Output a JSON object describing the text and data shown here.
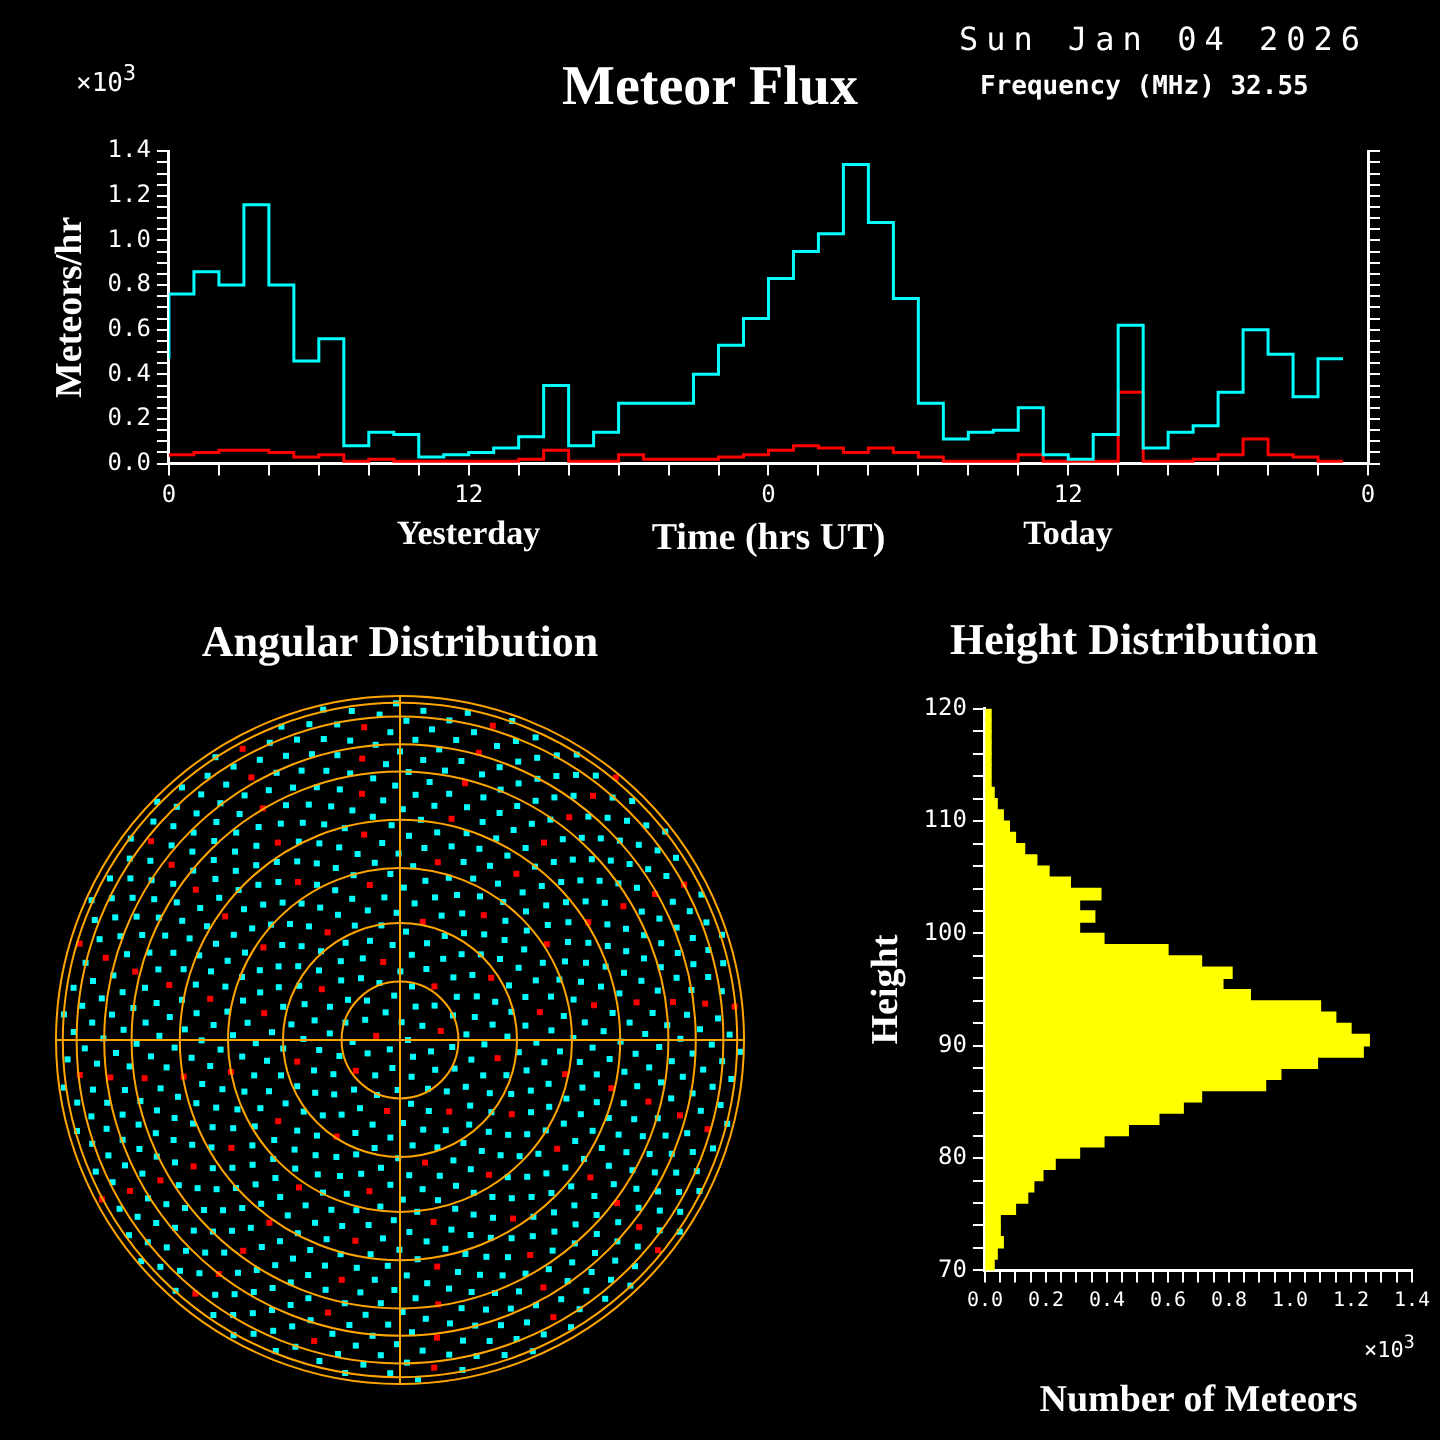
{
  "chart_data": [
    {
      "type": "step",
      "title": "Meteor Flux",
      "subtitle": "Sun Jan 04 2026",
      "xlabel": "Time (hrs UT)",
      "ylabel": "Meteors/hr",
      "annotations": [
        "×10$^{3}$",
        "Frequency (MHz)  32.55",
        "Yesterday",
        "Today"
      ],
      "x": [
        "2026-01-03T00:00",
        "2026-01-03T01:00",
        "2026-01-03T02:00",
        "2026-01-03T03:00",
        "2026-01-03T04:00",
        "2026-01-03T05:00",
        "2026-01-03T06:00",
        "2026-01-03T07:00",
        "2026-01-03T08:00",
        "2026-01-03T09:00",
        "2026-01-03T10:00",
        "2026-01-03T11:00",
        "2026-01-03T12:00",
        "2026-01-03T13:00",
        "2026-01-03T14:00",
        "2026-01-03T15:00",
        "2026-01-03T16:00",
        "2026-01-03T17:00",
        "2026-01-03T18:00",
        "2026-01-03T19:00",
        "2026-01-03T20:00",
        "2026-01-03T21:00",
        "2026-01-03T22:00",
        "2026-01-03T23:00",
        "2026-01-04T00:00",
        "2026-01-04T01:00",
        "2026-01-04T02:00",
        "2026-01-04T03:00",
        "2026-01-04T04:00",
        "2026-01-04T05:00",
        "2026-01-04T06:00",
        "2026-01-04T07:00",
        "2026-01-04T08:00",
        "2026-01-04T09:00",
        "2026-01-04T10:00",
        "2026-01-04T11:00",
        "2026-01-04T12:00",
        "2026-01-04T13:00",
        "2026-01-04T14:00",
        "2026-01-04T15:00",
        "2026-01-04T16:00",
        "2026-01-04T17:00",
        "2026-01-04T18:00",
        "2026-01-04T19:00",
        "2026-01-04T20:00",
        "2026-01-04T21:00",
        "2026-01-04T22:00",
        "2026-01-04T23:00"
      ],
      "series": [
        {
          "color": "#00ffff",
          "values": [
            0.47,
            0.76,
            0.86,
            0.8,
            1.16,
            0.8,
            0.46,
            0.56,
            0.08,
            0.14,
            0.13,
            0.03,
            0.04,
            0.05,
            0.07,
            0.12,
            0.35,
            0.08,
            0.14,
            0.27,
            0.27,
            0.27,
            0.4,
            0.53,
            0.65,
            0.83,
            0.95,
            1.03,
            1.34,
            1.08,
            0.74,
            0.27,
            0.11,
            0.14,
            0.15,
            0.25,
            0.04,
            0.02,
            0.13,
            0.62,
            0.07,
            0.14,
            0.17,
            0.32,
            0.6,
            0.49,
            0.3,
            0.47
          ]
        },
        {
          "color": "#ff0000",
          "values": [
            0.03,
            0.04,
            0.05,
            0.06,
            0.06,
            0.05,
            0.03,
            0.04,
            0.01,
            0.02,
            0.01,
            0.01,
            0.01,
            0.01,
            0.01,
            0.02,
            0.06,
            0.01,
            0.01,
            0.04,
            0.02,
            0.02,
            0.02,
            0.03,
            0.04,
            0.06,
            0.08,
            0.07,
            0.05,
            0.07,
            0.05,
            0.03,
            0.01,
            0.01,
            0.01,
            0.04,
            0.01,
            0.01,
            0.01,
            0.32,
            0.01,
            0.01,
            0.02,
            0.04,
            0.11,
            0.04,
            0.03,
            0.01
          ]
        }
      ],
      "xlim": [
        "2026-01-03T00:00",
        "2026-01-05T00:00"
      ],
      "xticks": [
        {
          "value": "2026-01-03T00:00",
          "label": "0"
        },
        {
          "value": "2026-01-03T02:00",
          "label": null
        },
        {
          "value": "2026-01-03T04:00",
          "label": null
        },
        {
          "value": "2026-01-03T06:00",
          "label": null
        },
        {
          "value": "2026-01-03T08:00",
          "label": null
        },
        {
          "value": "2026-01-03T10:00",
          "label": null
        },
        {
          "value": "2026-01-03T12:00",
          "label": "12"
        },
        {
          "value": "2026-01-03T14:00",
          "label": null
        },
        {
          "value": "2026-01-03T16:00",
          "label": null
        },
        {
          "value": "2026-01-03T18:00",
          "label": null
        },
        {
          "value": "2026-01-03T20:00",
          "label": null
        },
        {
          "value": "2026-01-03T22:00",
          "label": null
        },
        {
          "value": "2026-01-04T00:00",
          "label": "0"
        },
        {
          "value": "2026-01-04T02:00",
          "label": null
        },
        {
          "value": "2026-01-04T04:00",
          "label": null
        },
        {
          "value": "2026-01-04T06:00",
          "label": null
        },
        {
          "value": "2026-01-04T08:00",
          "label": null
        },
        {
          "value": "2026-01-04T10:00",
          "label": null
        },
        {
          "value": "2026-01-04T12:00",
          "label": "12"
        },
        {
          "value": "2026-01-04T14:00",
          "label": null
        },
        {
          "value": "2026-01-04T16:00",
          "label": null
        },
        {
          "value": "2026-01-04T18:00",
          "label": null
        },
        {
          "value": "2026-01-04T20:00",
          "label": null
        },
        {
          "value": "2026-01-04T22:00",
          "label": null
        },
        {
          "value": "2026-01-05T00:00",
          "label": "0"
        }
      ],
      "ylim": [
        0,
        1.4
      ],
      "yticks": [
        {
          "value": 0,
          "label": "0.0"
        },
        {
          "value": 0.05,
          "label": null
        },
        {
          "value": 0.1,
          "label": null
        },
        {
          "value": 0.15,
          "label": null
        },
        {
          "value": 0.2,
          "label": "0.2"
        },
        {
          "value": 0.25,
          "label": null
        },
        {
          "value": 0.3,
          "label": null
        },
        {
          "value": 0.35,
          "label": null
        },
        {
          "value": 0.4,
          "label": "0.4"
        },
        {
          "value": 0.45,
          "label": null
        },
        {
          "value": 0.5,
          "label": null
        },
        {
          "value": 0.55,
          "label": null
        },
        {
          "value": 0.6,
          "label": "0.6"
        },
        {
          "value": 0.65,
          "label": null
        },
        {
          "value": 0.7,
          "label": null
        },
        {
          "value": 0.75,
          "label": null
        },
        {
          "value": 0.8,
          "label": "0.8"
        },
        {
          "value": 0.85,
          "label": null
        },
        {
          "value": 0.9,
          "label": null
        },
        {
          "value": 0.95,
          "label": null
        },
        {
          "value": 1.0,
          "label": "1.0"
        },
        {
          "value": 1.05,
          "label": null
        },
        {
          "value": 1.1,
          "label": null
        },
        {
          "value": 1.15,
          "label": null
        },
        {
          "value": 1.2,
          "label": "1.2"
        },
        {
          "value": 1.25,
          "label": null
        },
        {
          "value": 1.3,
          "label": null
        },
        {
          "value": 1.35,
          "label": null
        },
        {
          "value": 1.4,
          "label": "1.4"
        }
      ]
    },
    {
      "type": "other",
      "title": "Angular Distribution"
    },
    {
      "type": "histogram",
      "orientation": "horizontal",
      "title": "Height Distribution",
      "xlabel": "Number of Meteors",
      "ylabel": "Height",
      "annotations": [
        "×10$^{3}$"
      ],
      "color": "#ffff00",
      "bins": [
        70,
        71,
        72,
        73,
        74,
        75,
        76,
        77,
        78,
        79,
        80,
        81,
        82,
        83,
        84,
        85,
        86,
        87,
        88,
        89,
        90,
        91,
        92,
        93,
        94,
        95,
        96,
        97,
        98,
        99,
        100,
        101,
        102,
        103,
        104,
        105,
        106,
        107,
        108,
        109,
        110,
        111,
        112,
        113,
        114,
        115,
        116,
        117,
        118,
        119,
        120
      ],
      "values": [
        0.03,
        0.04,
        0.06,
        0.05,
        0.05,
        0.1,
        0.14,
        0.16,
        0.19,
        0.23,
        0.31,
        0.39,
        0.47,
        0.57,
        0.65,
        0.71,
        0.92,
        0.97,
        1.09,
        1.24,
        1.26,
        1.2,
        1.15,
        1.1,
        0.87,
        0.78,
        0.81,
        0.71,
        0.6,
        0.39,
        0.31,
        0.36,
        0.31,
        0.38,
        0.28,
        0.21,
        0.17,
        0.13,
        0.1,
        0.08,
        0.06,
        0.04,
        0.03,
        0.02,
        0.02,
        0.02,
        0.02,
        0.02,
        0.02,
        0.02
      ],
      "xlim": [
        0,
        1.4
      ],
      "xticks": [
        {
          "value": 0,
          "label": "0.0"
        },
        {
          "value": 0.05,
          "label": null
        },
        {
          "value": 0.1,
          "label": null
        },
        {
          "value": 0.15,
          "label": null
        },
        {
          "value": 0.2,
          "label": "0.2"
        },
        {
          "value": 0.25,
          "label": null
        },
        {
          "value": 0.3,
          "label": null
        },
        {
          "value": 0.35,
          "label": null
        },
        {
          "value": 0.4,
          "label": "0.4"
        },
        {
          "value": 0.45,
          "label": null
        },
        {
          "value": 0.5,
          "label": null
        },
        {
          "value": 0.55,
          "label": null
        },
        {
          "value": 0.6,
          "label": "0.6"
        },
        {
          "value": 0.65,
          "label": null
        },
        {
          "value": 0.7,
          "label": null
        },
        {
          "value": 0.75,
          "label": null
        },
        {
          "value": 0.8,
          "label": "0.8"
        },
        {
          "value": 0.85,
          "label": null
        },
        {
          "value": 0.9,
          "label": null
        },
        {
          "value": 0.95,
          "label": null
        },
        {
          "value": 1.0,
          "label": "1.0"
        },
        {
          "value": 1.05,
          "label": null
        },
        {
          "value": 1.1,
          "label": null
        },
        {
          "value": 1.15,
          "label": null
        },
        {
          "value": 1.2,
          "label": "1.2"
        },
        {
          "value": 1.25,
          "label": null
        },
        {
          "value": 1.3,
          "label": null
        },
        {
          "value": 1.35,
          "label": null
        },
        {
          "value": 1.4,
          "label": "1.4"
        }
      ],
      "ylim": [
        70,
        120
      ],
      "yticks": [
        {
          "value": 70,
          "label": "70"
        },
        {
          "value": 72,
          "label": null
        },
        {
          "value": 74,
          "label": null
        },
        {
          "value": 76,
          "label": null
        },
        {
          "value": 78,
          "label": null
        },
        {
          "value": 80,
          "label": "80"
        },
        {
          "value": 82,
          "label": null
        },
        {
          "value": 84,
          "label": null
        },
        {
          "value": 86,
          "label": null
        },
        {
          "value": 88,
          "label": null
        },
        {
          "value": 90,
          "label": "90"
        },
        {
          "value": 92,
          "label": null
        },
        {
          "value": 94,
          "label": null
        },
        {
          "value": 96,
          "label": null
        },
        {
          "value": 98,
          "label": null
        },
        {
          "value": 100,
          "label": "100"
        },
        {
          "value": 102,
          "label": null
        },
        {
          "value": 104,
          "label": null
        },
        {
          "value": 106,
          "label": null
        },
        {
          "value": 108,
          "label": null
        },
        {
          "value": 110,
          "label": "110"
        },
        {
          "value": 112,
          "label": null
        },
        {
          "value": 114,
          "label": null
        },
        {
          "value": 116,
          "label": null
        },
        {
          "value": 118,
          "label": null
        },
        {
          "value": 120,
          "label": "120"
        }
      ]
    }
  ]
}
